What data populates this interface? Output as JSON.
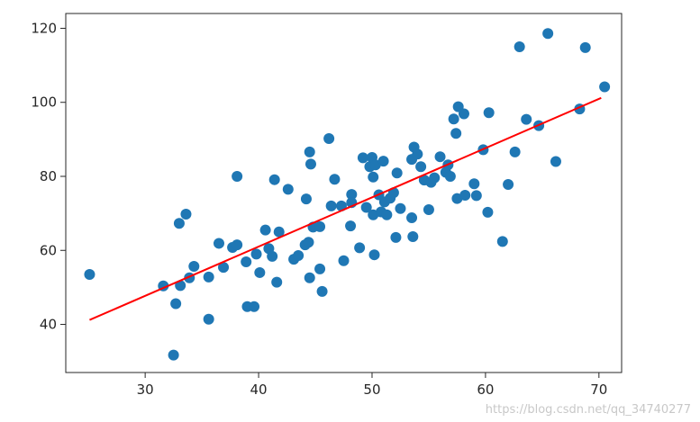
{
  "watermark": "https://blog.csdn.net/qq_34740277",
  "colors": {
    "points": "#1f77b4",
    "fit_line": "#ff0000",
    "axes": "#262626"
  },
  "chart_data": {
    "type": "scatter",
    "title": "",
    "xlabel": "",
    "ylabel": "",
    "xlim": [
      23,
      72
    ],
    "ylim": [
      27,
      124
    ],
    "xticks": [
      30,
      40,
      50,
      60,
      70
    ],
    "yticks": [
      40,
      60,
      80,
      100,
      120
    ],
    "grid": false,
    "legend": "none",
    "points": [
      [
        25.1,
        53.5
      ],
      [
        31.6,
        50.4
      ],
      [
        32.5,
        31.7
      ],
      [
        32.7,
        45.6
      ],
      [
        33.0,
        67.3
      ],
      [
        33.1,
        50.5
      ],
      [
        33.6,
        69.8
      ],
      [
        33.9,
        52.6
      ],
      [
        34.3,
        55.7
      ],
      [
        35.6,
        52.8
      ],
      [
        35.6,
        41.4
      ],
      [
        36.5,
        61.9
      ],
      [
        36.9,
        55.4
      ],
      [
        37.7,
        60.8
      ],
      [
        38.1,
        61.5
      ],
      [
        38.1,
        80.0
      ],
      [
        38.9,
        56.9
      ],
      [
        39.0,
        44.8
      ],
      [
        39.6,
        44.8
      ],
      [
        39.8,
        59.0
      ],
      [
        40.1,
        54.0
      ],
      [
        40.6,
        65.5
      ],
      [
        40.9,
        60.5
      ],
      [
        41.2,
        58.4
      ],
      [
        41.4,
        79.1
      ],
      [
        41.6,
        51.4
      ],
      [
        41.8,
        65.0
      ],
      [
        42.6,
        76.5
      ],
      [
        43.1,
        57.6
      ],
      [
        43.5,
        58.6
      ],
      [
        44.1,
        61.5
      ],
      [
        44.2,
        73.9
      ],
      [
        44.4,
        62.2
      ],
      [
        44.5,
        52.6
      ],
      [
        44.5,
        86.6
      ],
      [
        44.6,
        83.3
      ],
      [
        44.8,
        66.3
      ],
      [
        45.4,
        55.0
      ],
      [
        45.4,
        66.4
      ],
      [
        45.6,
        48.9
      ],
      [
        46.2,
        90.2
      ],
      [
        46.4,
        72.0
      ],
      [
        46.7,
        79.2
      ],
      [
        47.3,
        72.0
      ],
      [
        47.5,
        57.2
      ],
      [
        48.1,
        66.6
      ],
      [
        48.2,
        75.1
      ],
      [
        48.2,
        72.9
      ],
      [
        48.9,
        60.7
      ],
      [
        49.2,
        85.0
      ],
      [
        49.5,
        71.6
      ],
      [
        49.8,
        82.6
      ],
      [
        50.0,
        85.1
      ],
      [
        50.1,
        79.8
      ],
      [
        50.1,
        69.6
      ],
      [
        50.2,
        58.8
      ],
      [
        50.3,
        83.1
      ],
      [
        50.6,
        75.0
      ],
      [
        50.8,
        70.4
      ],
      [
        51.0,
        84.1
      ],
      [
        51.1,
        73.1
      ],
      [
        51.3,
        69.6
      ],
      [
        51.6,
        74.1
      ],
      [
        51.9,
        75.6
      ],
      [
        52.1,
        63.5
      ],
      [
        52.2,
        80.9
      ],
      [
        52.5,
        71.3
      ],
      [
        53.5,
        84.6
      ],
      [
        53.5,
        68.8
      ],
      [
        53.6,
        63.7
      ],
      [
        53.7,
        87.9
      ],
      [
        54.0,
        86.0
      ],
      [
        54.3,
        82.6
      ],
      [
        54.6,
        79.0
      ],
      [
        55.0,
        71.0
      ],
      [
        55.2,
        78.4
      ],
      [
        55.5,
        79.6
      ],
      [
        56.0,
        85.3
      ],
      [
        56.5,
        81.1
      ],
      [
        56.7,
        83.1
      ],
      [
        56.9,
        80.0
      ],
      [
        57.2,
        95.5
      ],
      [
        57.4,
        91.6
      ],
      [
        57.5,
        74.0
      ],
      [
        57.6,
        98.8
      ],
      [
        58.1,
        96.9
      ],
      [
        58.2,
        74.9
      ],
      [
        59.0,
        78.0
      ],
      [
        59.2,
        74.8
      ],
      [
        59.8,
        87.2
      ],
      [
        60.2,
        70.3
      ],
      [
        60.3,
        97.2
      ],
      [
        61.5,
        62.4
      ],
      [
        62.0,
        77.8
      ],
      [
        62.6,
        86.6
      ],
      [
        63.0,
        115.0
      ],
      [
        63.6,
        95.4
      ],
      [
        64.7,
        93.7
      ],
      [
        65.5,
        118.6
      ],
      [
        66.2,
        84.0
      ],
      [
        68.3,
        98.2
      ],
      [
        68.8,
        114.8
      ],
      [
        70.5,
        104.2
      ]
    ],
    "fit_line": {
      "x": [
        25.1,
        70.2
      ],
      "y": [
        41.2,
        101.2
      ]
    }
  }
}
